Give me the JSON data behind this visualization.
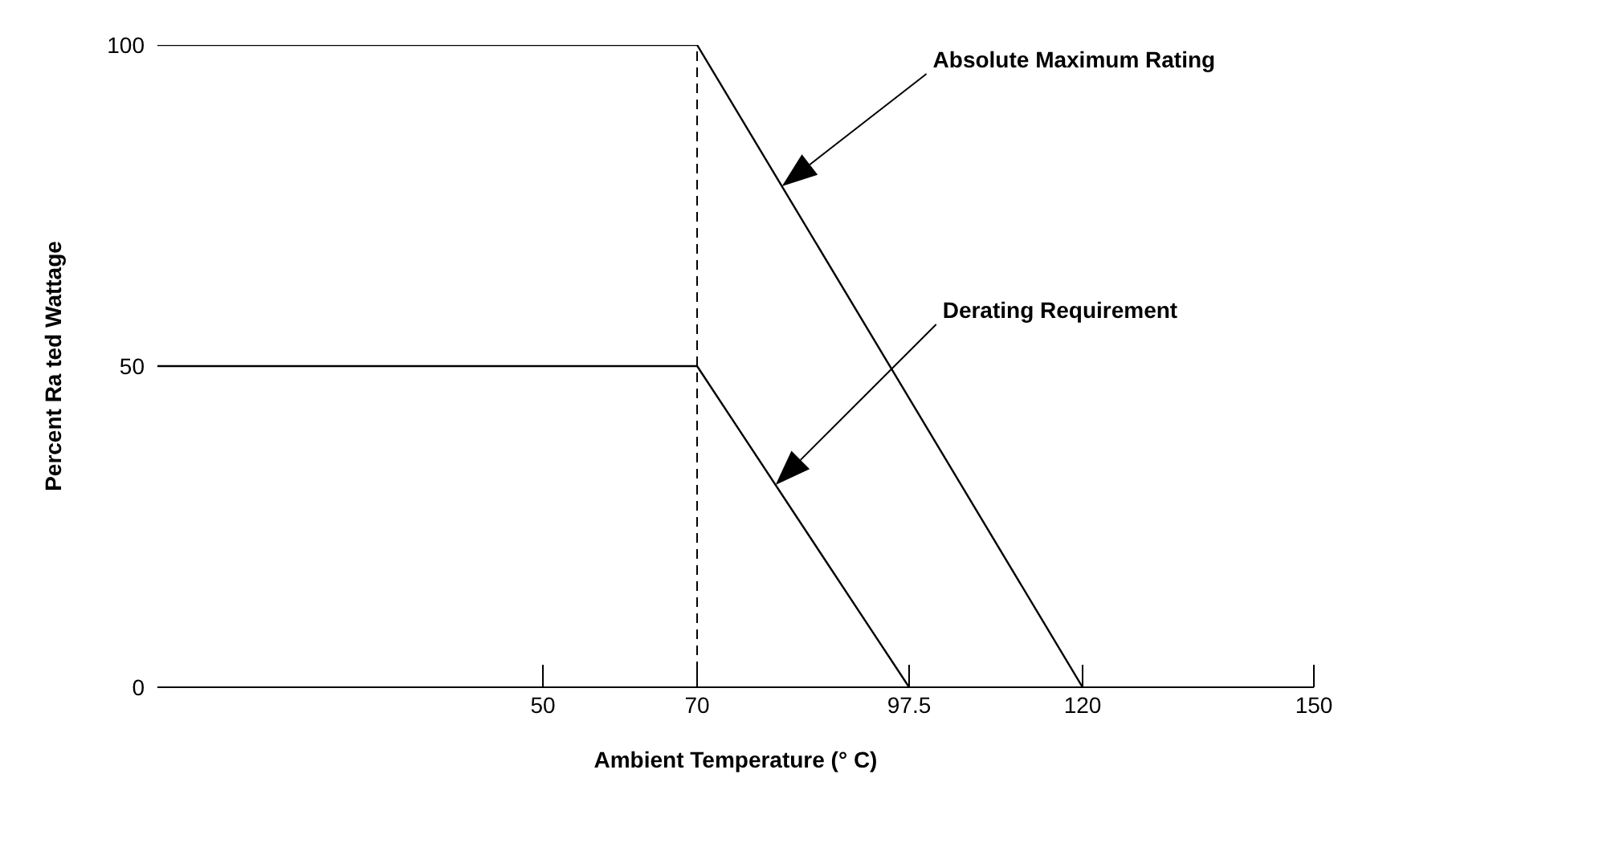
{
  "chart_data": {
    "type": "line",
    "xlabel": "Ambient Temperature (° C)",
    "ylabel": "Percent Ra ted Wattage",
    "xlim": [
      0,
      150
    ],
    "xticks": [
      50,
      70,
      97.5,
      120,
      150
    ],
    "ylim": [
      0,
      100
    ],
    "yticks": [
      0,
      50,
      100
    ],
    "series": [
      {
        "name": null,
        "color": "#000000",
        "x": [
          0,
          70,
          120
        ],
        "values": [
          100,
          100,
          0
        ]
      },
      {
        "name": null,
        "color": "#000000",
        "x": [
          0,
          70,
          97.5
        ],
        "values": [
          50,
          50,
          0
        ]
      }
    ],
    "ref_lines": [
      {
        "axis": "x",
        "value": 70,
        "color": "#000000",
        "line_style": "dashed"
      }
    ],
    "annotations": [
      "Absolute Maximum Rating",
      "Derating Requirement"
    ],
    "grid": false,
    "legend": false
  }
}
